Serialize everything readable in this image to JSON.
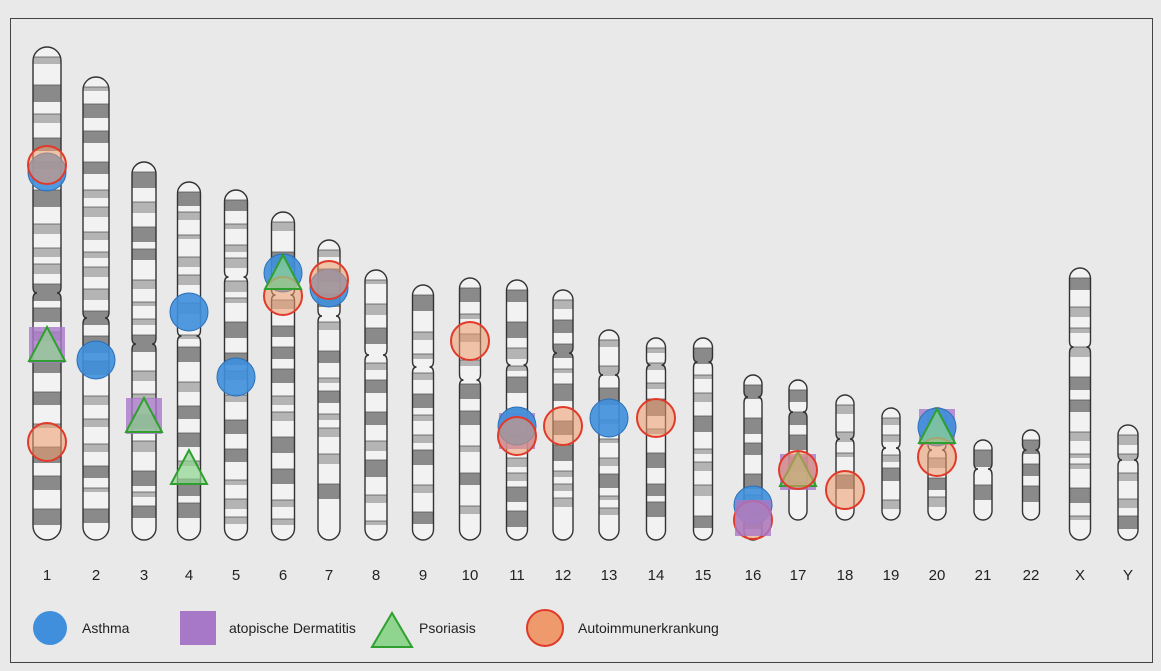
{
  "figure": {
    "chromosome_labels": [
      "1",
      "2",
      "3",
      "4",
      "5",
      "6",
      "7",
      "8",
      "9",
      "10",
      "11",
      "12",
      "13",
      "14",
      "15",
      "16",
      "17",
      "18",
      "19",
      "20",
      "21",
      "22",
      "X",
      "Y"
    ]
  },
  "legend": {
    "asthma": "Asthma",
    "dermatitis": "atopische Dermatitis",
    "psoriasis": "Psoriasis",
    "autoimmune": "Autoimmunerkrankung"
  },
  "colors": {
    "asthma": "#3f8fdc",
    "dermatitis": "#a878c8",
    "psoriasis": "#5cc05c",
    "autoimmune_fill": "#ee9a6c",
    "autoimmune_stroke": "#e03a2a",
    "chromosome_fill": "#f2f2f2",
    "band_dark": "#8a8a8a",
    "band_mid": "#b4b4b4",
    "outline": "#333333"
  },
  "marker_legend_order": [
    "asthma",
    "dermatitis",
    "psoriasis",
    "autoimmune"
  ]
}
